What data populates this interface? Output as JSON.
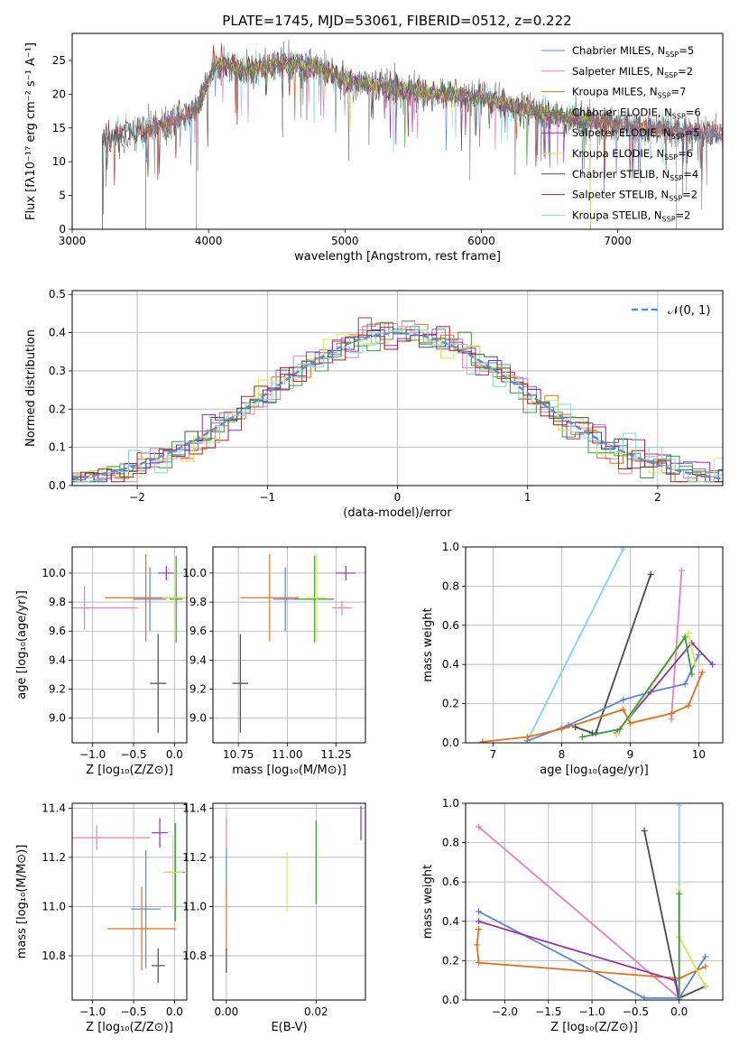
{
  "title": "PLATE=1745, MJD=53061, FIBERID=0512, z=0.222",
  "colors": {
    "chabrier_miles": "#5b84d8",
    "salpeter_miles": "#e57fbe",
    "kroupa_miles": "#e07020",
    "chabrier_elodie": "#3a9a3a",
    "salpeter_elodie": "#9430b0",
    "kroupa_elodie": "#d4ea4c",
    "chabrier_stelib": "#4a4a4a",
    "salpeter_stelib": "#a02020",
    "kroupa_stelib": "#7fd8d8",
    "normal": "#5b8fd8"
  },
  "chart_data": [
    {
      "id": "spectrum",
      "type": "line",
      "xlabel": "wavelength [Angstrom, rest frame]",
      "ylabel": "Flux [fλ10⁻¹⁷ erg cm⁻² s⁻¹ A⁻¹]",
      "xlim": [
        3000,
        7770
      ],
      "ylim": [
        0,
        29
      ],
      "x_ticks": [
        "3000",
        "4000",
        "5000",
        "6000",
        "7000"
      ],
      "y_ticks": [
        "0",
        "5",
        "10",
        "15",
        "20",
        "25"
      ],
      "legend_position": "top-right",
      "legend": [
        {
          "name": "Chabrier MILES, N",
          "sub": "SSP",
          "n": "=5",
          "color_key": "chabrier_miles"
        },
        {
          "name": "Salpeter MILES, N",
          "sub": "SSP",
          "n": "=2",
          "color_key": "salpeter_miles"
        },
        {
          "name": "Kroupa MILES, N",
          "sub": "SSP",
          "n": "=7",
          "color_key": "kroupa_miles"
        },
        {
          "name": "Chabrier ELODIE, N",
          "sub": "SSP",
          "n": "=6",
          "color_key": "chabrier_elodie"
        },
        {
          "name": "Salpeter ELODIE, N",
          "sub": "SSP",
          "n": "=5",
          "color_key": "salpeter_elodie"
        },
        {
          "name": "Kroupa ELODIE, N",
          "sub": "SSP",
          "n": "=6",
          "color_key": "kroupa_elodie"
        },
        {
          "name": "Chabrier STELIB, N",
          "sub": "SSP",
          "n": "=4",
          "color_key": "chabrier_stelib"
        },
        {
          "name": "Salpeter STELIB, N",
          "sub": "SSP",
          "n": "=2",
          "color_key": "salpeter_stelib"
        },
        {
          "name": "Kroupa STELIB, N",
          "sub": "SSP",
          "n": "=2",
          "color_key": "kroupa_stelib"
        }
      ],
      "continuum": [
        [
          3220,
          13.5
        ],
        [
          3500,
          14.5
        ],
        [
          3700,
          15.5
        ],
        [
          3900,
          17.5
        ],
        [
          4000,
          22
        ],
        [
          4050,
          24.5
        ],
        [
          4300,
          23.5
        ],
        [
          4500,
          24.5
        ],
        [
          4800,
          24
        ],
        [
          5000,
          22
        ],
        [
          5500,
          20.5
        ],
        [
          6000,
          19.5
        ],
        [
          6500,
          17
        ],
        [
          7000,
          15.5
        ],
        [
          7770,
          14
        ]
      ],
      "model_ranges": [
        {
          "color_key": "chabrier_miles",
          "start": 3540
        },
        {
          "color_key": "salpeter_miles",
          "start": 3540
        },
        {
          "color_key": "kroupa_miles",
          "start": 3540,
          "end": 7430
        },
        {
          "color_key": "chabrier_elodie",
          "start": 3910,
          "end": 6800
        },
        {
          "color_key": "salpeter_elodie",
          "start": 3910,
          "end": 6800
        },
        {
          "color_key": "kroupa_elodie",
          "start": 3910,
          "end": 6800
        },
        {
          "color_key": "chabrier_stelib",
          "start": 3220
        },
        {
          "color_key": "salpeter_stelib",
          "start": 3220
        },
        {
          "color_key": "kroupa_stelib",
          "start": 3220
        }
      ]
    },
    {
      "id": "residuals",
      "type": "histogram",
      "xlabel": "(data-model)/error",
      "ylabel": "Normed distribution",
      "xlim": [
        -2.5,
        2.5
      ],
      "ylim": [
        0,
        0.51
      ],
      "x_ticks": [
        "−2",
        "−1",
        "0",
        "1",
        "2"
      ],
      "y_ticks": [
        "0.0",
        "0.1",
        "0.2",
        "0.3",
        "0.4",
        "0.5"
      ],
      "legend": [
        {
          "name": "𝒩(0, 1)",
          "color_key": "normal",
          "style": "dashed"
        }
      ],
      "legend_position": "top-right",
      "bin_width": 0.1,
      "gaussian": {
        "mu": 0,
        "sigma": 1
      }
    },
    {
      "id": "age_vs_Z",
      "type": "errorbar",
      "xlabel": "Z [log₁₀(Z/Z⊙)]",
      "ylabel": "age  [log₁₀(age/yr)]",
      "xlim": [
        -1.25,
        0.15
      ],
      "ylim": [
        8.83,
        10.18
      ],
      "x_ticks": [
        "−1.0",
        "−0.5",
        "0.0"
      ],
      "x_tick_values": [
        -1.0,
        -0.5,
        0.0
      ],
      "y_ticks": [
        "9.0",
        "9.2",
        "9.4",
        "9.6",
        "9.8",
        "10.0"
      ],
      "y_tick_values": [
        9.0,
        9.2,
        9.4,
        9.6,
        9.8,
        10.0
      ],
      "points": [
        {
          "color_key": "chabrier_miles",
          "x": -0.3,
          "y": 9.82,
          "xerr": 0.2,
          "yerr": 0.22
        },
        {
          "color_key": "salpeter_miles",
          "x": -1.1,
          "y": 9.76,
          "xerr": 0.65,
          "yerr": 0.15
        },
        {
          "color_key": "kroupa_miles",
          "x": -0.35,
          "y": 9.83,
          "xerr": 0.5,
          "yerr": 0.3
        },
        {
          "color_key": "chabrier_elodie",
          "x": 0.02,
          "y": 9.82,
          "xerr": 0.08,
          "yerr": 0.3
        },
        {
          "color_key": "salpeter_elodie",
          "x": -0.1,
          "y": 10.0,
          "xerr": 0.1,
          "yerr": 0.05
        },
        {
          "color_key": "kroupa_elodie",
          "x": 0.0,
          "y": 9.83,
          "xerr": 0.15,
          "yerr": 0.3
        },
        {
          "color_key": "chabrier_stelib",
          "x": -0.2,
          "y": 9.24,
          "xerr": 0.1,
          "yerr": 0.34
        }
      ]
    },
    {
      "id": "age_vs_mass",
      "type": "errorbar",
      "xlabel": "mass [log₁₀(M/M⊙)]",
      "ylabel": "",
      "xlim": [
        10.62,
        11.4
      ],
      "ylim": [
        8.83,
        10.18
      ],
      "x_ticks": [
        "10.75",
        "11.00",
        "11.25"
      ],
      "x_tick_values": [
        10.75,
        11.0,
        11.25
      ],
      "y_ticks": [
        "9.0",
        "9.2",
        "9.4",
        "9.6",
        "9.8",
        "10.0"
      ],
      "y_tick_values": [
        9.0,
        9.2,
        9.4,
        9.6,
        9.8,
        10.0
      ],
      "points": [
        {
          "color_key": "chabrier_miles",
          "x": 10.99,
          "y": 9.82,
          "xerr": 0.06,
          "yerr": 0.22
        },
        {
          "color_key": "salpeter_miles",
          "x": 11.28,
          "y": 9.76,
          "xerr": 0.05,
          "yerr": 0.05
        },
        {
          "color_key": "kroupa_miles",
          "x": 10.91,
          "y": 9.83,
          "xerr": 0.15,
          "yerr": 0.3
        },
        {
          "color_key": "chabrier_elodie",
          "x": 11.14,
          "y": 9.82,
          "xerr": 0.1,
          "yerr": 0.3
        },
        {
          "color_key": "salpeter_elodie",
          "x": 11.3,
          "y": 10.0,
          "xerr": 0.05,
          "yerr": 0.05
        },
        {
          "color_key": "kroupa_elodie",
          "x": 11.15,
          "y": 9.83,
          "xerr": 0.05,
          "yerr": 0.3
        },
        {
          "color_key": "chabrier_stelib",
          "x": 10.76,
          "y": 9.24,
          "xerr": 0.04,
          "yerr": 0.34
        }
      ]
    },
    {
      "id": "mass_weight_vs_age",
      "type": "line",
      "xlabel": "age  [log₁₀(age/yr)]",
      "ylabel": "mass weight",
      "xlim": [
        6.6,
        10.35
      ],
      "ylim": [
        0,
        1.0
      ],
      "x_ticks": [
        "7",
        "8",
        "9",
        "10"
      ],
      "x_tick_values": [
        7,
        8,
        9,
        10
      ],
      "y_ticks": [
        "0.0",
        "0.2",
        "0.4",
        "0.6",
        "0.8",
        "1.0"
      ],
      "y_tick_values": [
        0,
        0.2,
        0.4,
        0.6,
        0.8,
        1.0
      ],
      "series": [
        {
          "color_key": "kroupa_stelib",
          "x": [
            7.5,
            8.9
          ],
          "y": [
            0.01,
            0.99
          ]
        },
        {
          "color_key": "chabrier_stelib",
          "x": [
            8.5,
            9.3
          ],
          "y": [
            0.05,
            0.86
          ]
        },
        {
          "color_key": "salpeter_miles",
          "x": [
            9.6,
            9.75
          ],
          "y": [
            0.12,
            0.88
          ]
        },
        {
          "color_key": "chabrier_miles",
          "x": [
            7.5,
            8.1,
            8.9,
            9.3,
            9.8,
            10.0
          ],
          "y": [
            0.01,
            0.09,
            0.22,
            0.26,
            0.3,
            0.45
          ]
        },
        {
          "color_key": "kroupa_miles",
          "x": [
            6.85,
            7.5,
            8.0,
            8.9,
            9.0,
            9.6,
            9.85,
            10.05
          ],
          "y": [
            0.005,
            0.03,
            0.07,
            0.17,
            0.1,
            0.15,
            0.19,
            0.36
          ]
        },
        {
          "color_key": "salpeter_elodie",
          "x": [
            8.8,
            9.9,
            10.2
          ],
          "y": [
            0.05,
            0.51,
            0.4
          ]
        },
        {
          "color_key": "kroupa_elodie",
          "x": [
            8.8,
            9.85,
            9.95
          ],
          "y": [
            0.04,
            0.56,
            0.4
          ]
        },
        {
          "color_key": "chabrier_elodie",
          "x": [
            8.3,
            8.85,
            9.8,
            9.9
          ],
          "y": [
            0.03,
            0.07,
            0.54,
            0.35
          ]
        },
        {
          "color_key": "chabrier_stelib",
          "x": [
            8.2,
            8.45
          ],
          "y": [
            0.08,
            0.05
          ]
        }
      ]
    },
    {
      "id": "mass_vs_Z",
      "type": "errorbar",
      "xlabel": "Z [log₁₀(Z/Z⊙)]",
      "ylabel": "mass [log₁₀(M/M⊙)]",
      "xlim": [
        -1.25,
        0.15
      ],
      "ylim": [
        10.62,
        11.42
      ],
      "x_ticks": [
        "−1.0",
        "−0.5",
        "0.0"
      ],
      "x_tick_values": [
        -1.0,
        -0.5,
        0.0
      ],
      "y_ticks": [
        "10.8",
        "11.0",
        "11.2",
        "11.4"
      ],
      "y_tick_values": [
        10.8,
        11.0,
        11.2,
        11.4
      ],
      "points": [
        {
          "color_key": "chabrier_miles",
          "x": -0.35,
          "y": 10.99,
          "xerr": 0.18,
          "yerr": 0.24
        },
        {
          "color_key": "salpeter_miles",
          "x": -0.95,
          "y": 11.28,
          "xerr": 0.65,
          "yerr": 0.05
        },
        {
          "color_key": "kroupa_miles",
          "x": -0.4,
          "y": 10.91,
          "xerr": 0.42,
          "yerr": 0.17
        },
        {
          "color_key": "chabrier_elodie",
          "x": 0.01,
          "y": 11.14,
          "xerr": 0.12,
          "yerr": 0.2
        },
        {
          "color_key": "salpeter_elodie",
          "x": -0.18,
          "y": 11.3,
          "xerr": 0.1,
          "yerr": 0.06
        },
        {
          "color_key": "kroupa_elodie",
          "x": -0.02,
          "y": 11.14,
          "xerr": 0.12,
          "yerr": 0.15
        },
        {
          "color_key": "chabrier_stelib",
          "x": -0.2,
          "y": 10.76,
          "xerr": 0.08,
          "yerr": 0.07
        }
      ]
    },
    {
      "id": "mass_vs_ebv",
      "type": "errorbar",
      "xlabel": "E(B-V)",
      "ylabel": "",
      "xlim": [
        -0.003,
        0.031
      ],
      "ylim": [
        10.62,
        11.42
      ],
      "x_ticks": [
        "0.00",
        "0.02"
      ],
      "x_tick_values": [
        0.0,
        0.02
      ],
      "y_ticks": [
        "10.8",
        "11.0",
        "11.2",
        "11.4"
      ],
      "y_tick_values": [
        10.8,
        11.0,
        11.2,
        11.4
      ],
      "points": [
        {
          "color_key": "chabrier_miles",
          "x": 0.0,
          "y": 11.14,
          "xerr": 0.0,
          "yerr": 0.1
        },
        {
          "color_key": "salpeter_miles",
          "x": 0.0,
          "y": 11.3,
          "xerr": 0.0,
          "yerr": 0.06
        },
        {
          "color_key": "kroupa_miles",
          "x": 0.0,
          "y": 10.95,
          "xerr": 0.0,
          "yerr": 0.13
        },
        {
          "color_key": "chabrier_elodie",
          "x": 0.02,
          "y": 11.18,
          "xerr": 0.0,
          "yerr": 0.17
        },
        {
          "color_key": "salpeter_elodie",
          "x": 0.03,
          "y": 11.34,
          "xerr": 0.0,
          "yerr": 0.07
        },
        {
          "color_key": "kroupa_elodie",
          "x": 0.0135,
          "y": 11.1,
          "xerr": 0.0,
          "yerr": 0.12
        },
        {
          "color_key": "chabrier_stelib",
          "x": 0.0,
          "y": 10.78,
          "xerr": 0.0,
          "yerr": 0.05
        }
      ]
    },
    {
      "id": "mass_weight_vs_Z",
      "type": "line",
      "xlabel": "Z [log₁₀(Z/Z⊙)]",
      "ylabel": "mass weight",
      "xlim": [
        -2.45,
        0.5
      ],
      "ylim": [
        0,
        1.0
      ],
      "x_ticks": [
        "−2.0",
        "−1.5",
        "−1.0",
        "−0.5",
        "0.0"
      ],
      "x_tick_values": [
        -2.0,
        -1.5,
        -1.0,
        -0.5,
        0.0
      ],
      "y_ticks": [
        "0.0",
        "0.2",
        "0.4",
        "0.6",
        "0.8",
        "1.0"
      ],
      "y_tick_values": [
        0,
        0.2,
        0.4,
        0.6,
        0.8,
        1.0
      ],
      "series": [
        {
          "color_key": "kroupa_stelib",
          "x": [
            0.0,
            0.0
          ],
          "y": [
            0.0,
            0.99
          ]
        },
        {
          "color_key": "chabrier_stelib",
          "x": [
            -0.4,
            0.0,
            0.3
          ],
          "y": [
            0.86,
            0.01,
            0.07
          ]
        },
        {
          "color_key": "salpeter_miles",
          "x": [
            -2.3,
            0.0
          ],
          "y": [
            0.88,
            0.01
          ]
        },
        {
          "color_key": "chabrier_miles",
          "x": [
            -2.3,
            -0.4,
            0.0,
            0.3
          ],
          "y": [
            0.45,
            0.01,
            0.01,
            0.22
          ]
        },
        {
          "color_key": "kroupa_miles",
          "x": [
            -2.3,
            -2.32,
            -2.3,
            0.0,
            0.3
          ],
          "y": [
            0.36,
            0.28,
            0.19,
            0.11,
            0.17
          ]
        },
        {
          "color_key": "salpeter_elodie",
          "x": [
            -2.3,
            -0.05,
            0.0
          ],
          "y": [
            0.4,
            0.1,
            0.0
          ]
        },
        {
          "color_key": "kroupa_elodie",
          "x": [
            0.0,
            0.0,
            0.3
          ],
          "y": [
            0.56,
            0.32,
            0.07
          ]
        },
        {
          "color_key": "chabrier_elodie",
          "x": [
            0.0,
            0.0
          ],
          "y": [
            0.0,
            0.54
          ]
        }
      ]
    }
  ]
}
